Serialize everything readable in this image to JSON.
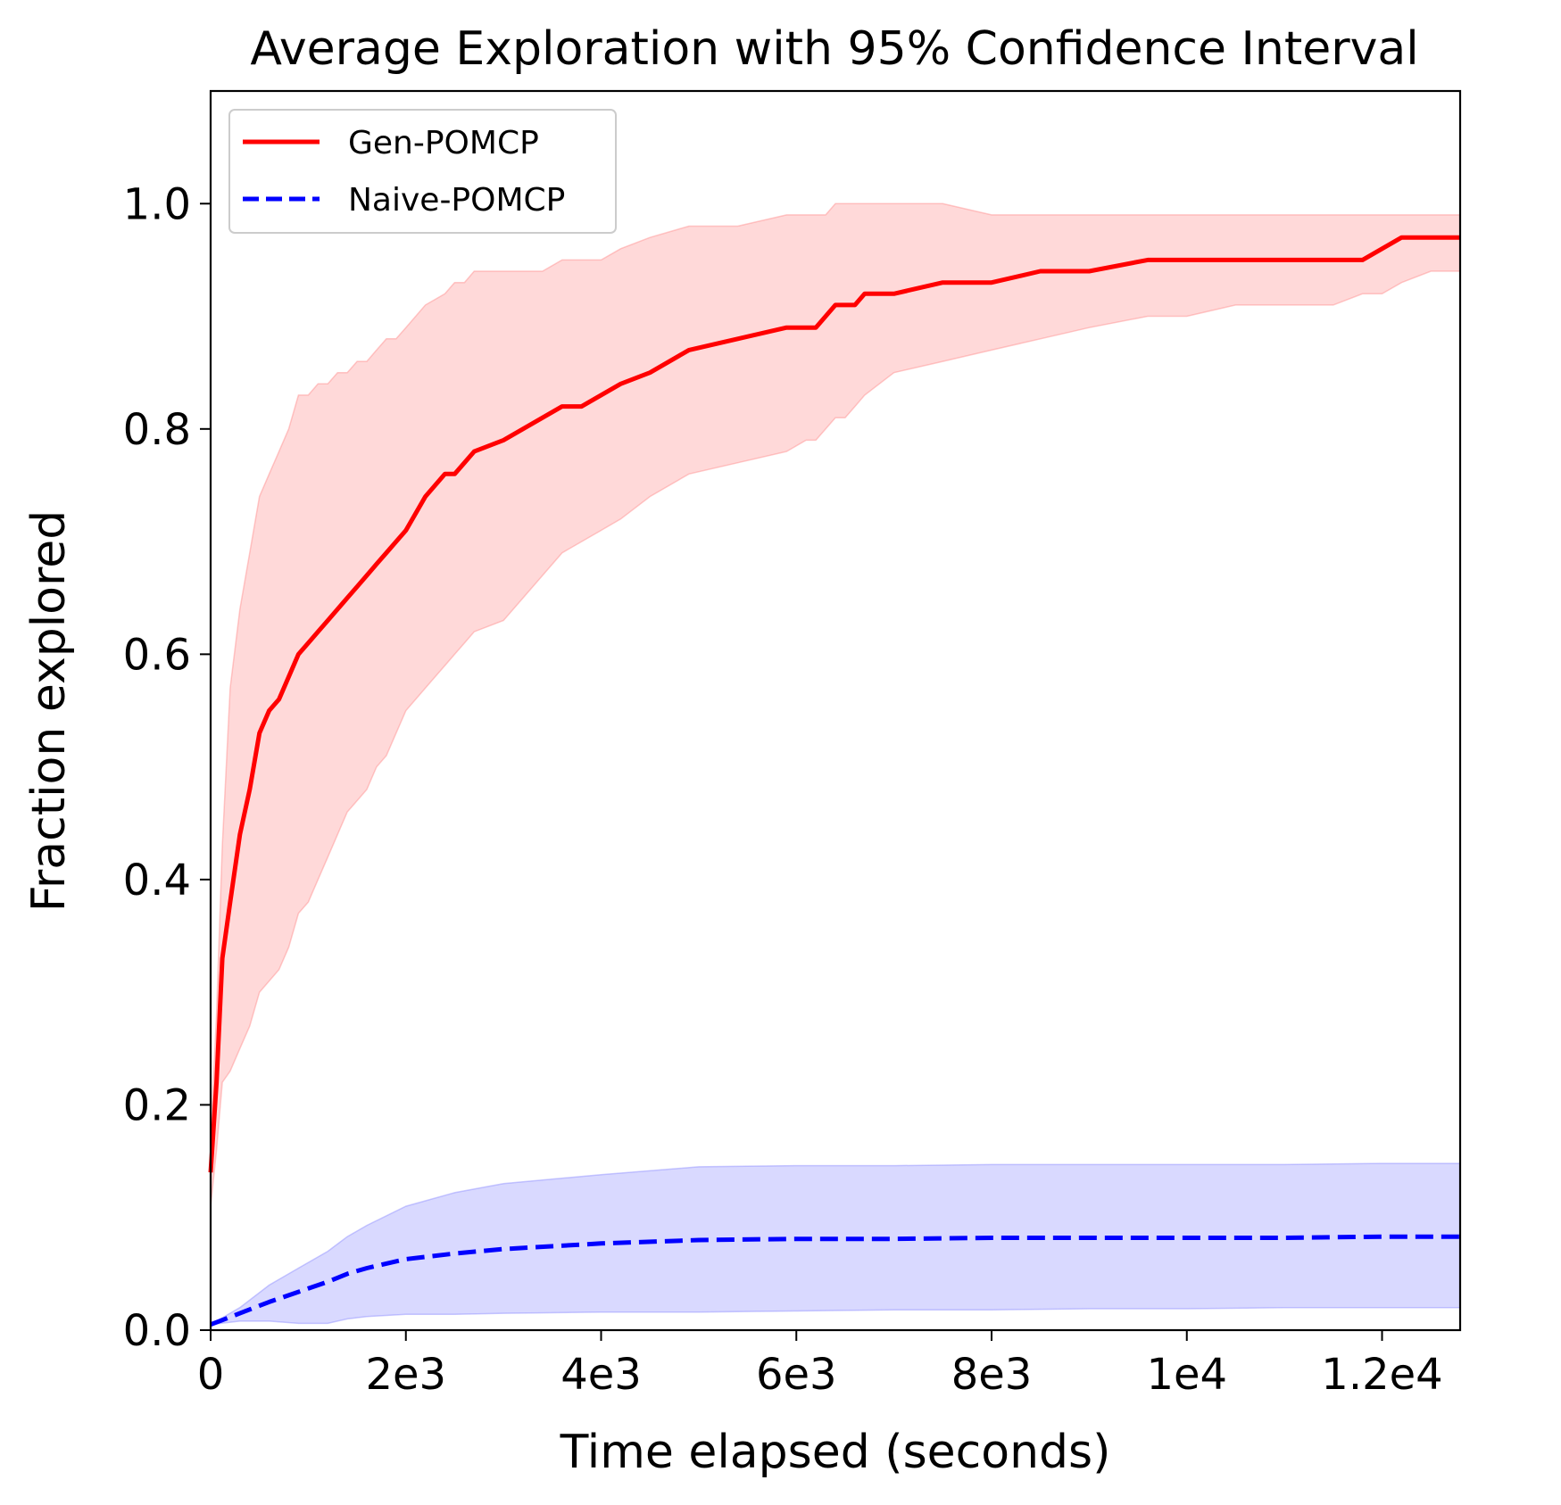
{
  "chart_data": {
    "type": "line",
    "title": "Average Exploration with 95% Confidence Interval",
    "xlabel": "Time elapsed (seconds)",
    "ylabel": "Fraction explored",
    "xlim": [
      0,
      12800
    ],
    "ylim": [
      0,
      1.1
    ],
    "xticks": [
      {
        "value": 0,
        "label": "0"
      },
      {
        "value": 2000,
        "label": "2e3"
      },
      {
        "value": 4000,
        "label": "4e3"
      },
      {
        "value": 6000,
        "label": "6e3"
      },
      {
        "value": 8000,
        "label": "8e3"
      },
      {
        "value": 10000,
        "label": "1e4"
      },
      {
        "value": 12000,
        "label": "1.2e4"
      }
    ],
    "yticks": [
      {
        "value": 0.0,
        "label": "0.0"
      },
      {
        "value": 0.2,
        "label": "0.2"
      },
      {
        "value": 0.4,
        "label": "0.4"
      },
      {
        "value": 0.6,
        "label": "0.6"
      },
      {
        "value": 0.8,
        "label": "0.8"
      },
      {
        "value": 1.0,
        "label": "1.0"
      }
    ],
    "grid": false,
    "legend_position": "top-left",
    "series": [
      {
        "name": "Gen-POMCP",
        "color": "#ff0000",
        "fill_color": "#ff8a8a",
        "style": "solid",
        "x": [
          0,
          60,
          120,
          200,
          300,
          400,
          500,
          600,
          700,
          800,
          900,
          1000,
          1100,
          1200,
          1300,
          1400,
          1500,
          1600,
          1700,
          1800,
          1900,
          2000,
          2200,
          2400,
          2500,
          2600,
          2700,
          3000,
          3200,
          3400,
          3600,
          3800,
          4000,
          4200,
          4500,
          4900,
          5400,
          5900,
          6100,
          6200,
          6300,
          6400,
          6500,
          6600,
          6700,
          7000,
          7500,
          8000,
          8500,
          9000,
          9600,
          10000,
          10500,
          11000,
          11500,
          11800,
          12000,
          12200,
          12500,
          12800
        ],
        "y": [
          0.14,
          0.22,
          0.33,
          0.38,
          0.44,
          0.48,
          0.53,
          0.55,
          0.56,
          0.58,
          0.6,
          0.61,
          0.62,
          0.63,
          0.64,
          0.65,
          0.66,
          0.67,
          0.68,
          0.69,
          0.7,
          0.71,
          0.74,
          0.76,
          0.76,
          0.77,
          0.78,
          0.79,
          0.8,
          0.81,
          0.82,
          0.82,
          0.83,
          0.84,
          0.85,
          0.87,
          0.88,
          0.89,
          0.89,
          0.89,
          0.9,
          0.91,
          0.91,
          0.91,
          0.92,
          0.92,
          0.93,
          0.93,
          0.94,
          0.94,
          0.95,
          0.95,
          0.95,
          0.95,
          0.95,
          0.95,
          0.96,
          0.97,
          0.97,
          0.97
        ],
        "upper": [
          0.17,
          0.28,
          0.43,
          0.57,
          0.64,
          0.69,
          0.74,
          0.76,
          0.78,
          0.8,
          0.83,
          0.83,
          0.84,
          0.84,
          0.85,
          0.85,
          0.86,
          0.86,
          0.87,
          0.88,
          0.88,
          0.89,
          0.91,
          0.92,
          0.93,
          0.93,
          0.94,
          0.94,
          0.94,
          0.94,
          0.95,
          0.95,
          0.95,
          0.96,
          0.97,
          0.98,
          0.98,
          0.99,
          0.99,
          0.99,
          0.99,
          1.0,
          1.0,
          1.0,
          1.0,
          1.0,
          1.0,
          0.99,
          0.99,
          0.99,
          0.99,
          0.99,
          0.99,
          0.99,
          0.99,
          0.99,
          0.99,
          0.99,
          0.99,
          0.99
        ],
        "lower": [
          0.11,
          0.16,
          0.22,
          0.23,
          0.25,
          0.27,
          0.3,
          0.31,
          0.32,
          0.34,
          0.37,
          0.38,
          0.4,
          0.42,
          0.44,
          0.46,
          0.47,
          0.48,
          0.5,
          0.51,
          0.53,
          0.55,
          0.57,
          0.59,
          0.6,
          0.61,
          0.62,
          0.63,
          0.65,
          0.67,
          0.69,
          0.7,
          0.71,
          0.72,
          0.74,
          0.76,
          0.77,
          0.78,
          0.79,
          0.79,
          0.8,
          0.81,
          0.81,
          0.82,
          0.83,
          0.85,
          0.86,
          0.87,
          0.88,
          0.89,
          0.9,
          0.9,
          0.91,
          0.91,
          0.91,
          0.92,
          0.92,
          0.93,
          0.94,
          0.94
        ]
      },
      {
        "name": "Naive-POMCP",
        "color": "#0000ff",
        "fill_color": "#8a8aff",
        "style": "dashed",
        "x": [
          0,
          300,
          600,
          900,
          1200,
          1400,
          1600,
          2000,
          2500,
          3000,
          4000,
          5000,
          6000,
          7000,
          8000,
          9000,
          10000,
          11000,
          12000,
          12800
        ],
        "y": [
          0.005,
          0.015,
          0.025,
          0.034,
          0.043,
          0.05,
          0.055,
          0.063,
          0.068,
          0.072,
          0.077,
          0.08,
          0.081,
          0.081,
          0.082,
          0.082,
          0.082,
          0.082,
          0.083,
          0.083
        ],
        "upper": [
          0.005,
          0.02,
          0.04,
          0.055,
          0.07,
          0.083,
          0.093,
          0.11,
          0.122,
          0.13,
          0.138,
          0.145,
          0.146,
          0.146,
          0.147,
          0.147,
          0.147,
          0.147,
          0.148,
          0.148
        ],
        "lower": [
          0.005,
          0.008,
          0.008,
          0.006,
          0.006,
          0.01,
          0.012,
          0.014,
          0.014,
          0.015,
          0.016,
          0.016,
          0.017,
          0.018,
          0.018,
          0.019,
          0.019,
          0.02,
          0.02,
          0.02
        ]
      }
    ]
  }
}
